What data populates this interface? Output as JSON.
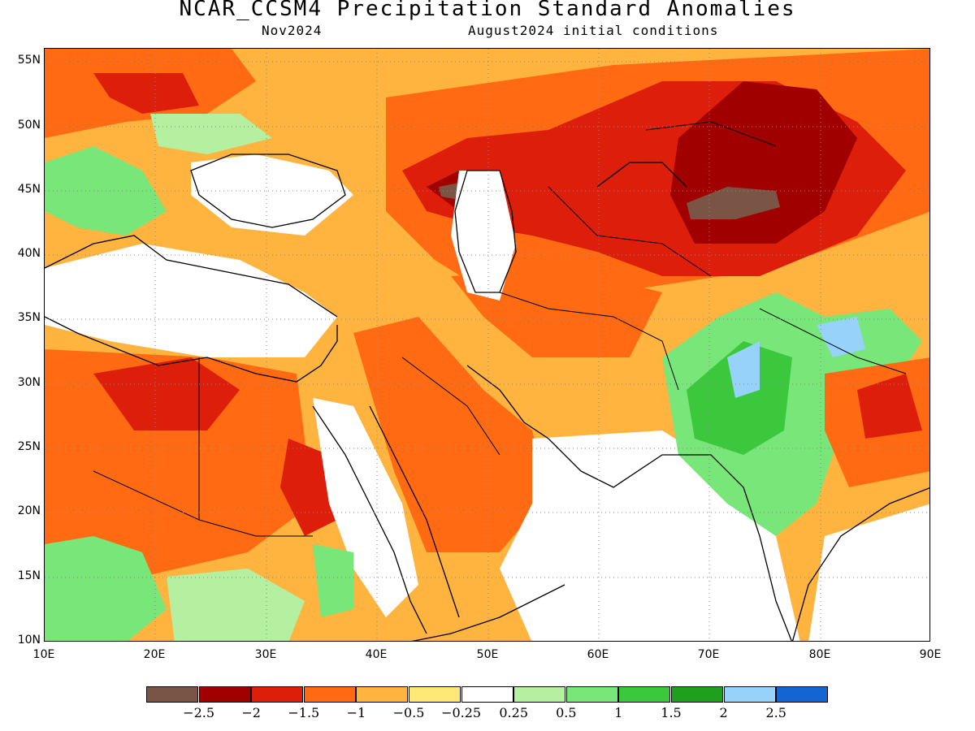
{
  "title": "NCAR_CCSM4 Precipitation Standard Anomalies",
  "subtitle_left": "Nov2024",
  "subtitle_right": "August2024 initial conditions",
  "lat_labels": [
    "55N",
    "50N",
    "45N",
    "40N",
    "35N",
    "30N",
    "25N",
    "20N",
    "15N",
    "10N"
  ],
  "lon_labels": [
    "10E",
    "20E",
    "30E",
    "40E",
    "50E",
    "60E",
    "70E",
    "80E",
    "90E"
  ],
  "legend": {
    "colors": [
      "#7a5545",
      "#a00000",
      "#dc1e0a",
      "#ff6a12",
      "#ffb440",
      "#ffe878",
      "#ffffff",
      "#b4f0a0",
      "#78e678",
      "#3cc83c",
      "#1ea01e",
      "#96d2fa",
      "#1464d2"
    ],
    "labels": [
      "−2.5",
      "−2",
      "−1.5",
      "−1",
      "−0.5",
      "−0.25",
      "0.25",
      "0.5",
      "1",
      "1.5",
      "2",
      "2.5"
    ]
  }
}
